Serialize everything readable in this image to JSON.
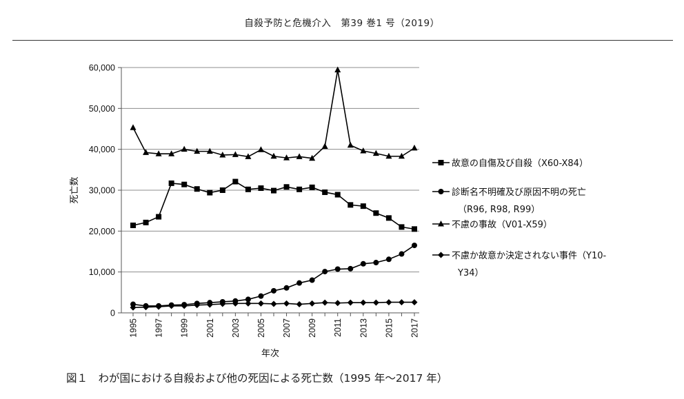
{
  "header": {
    "title": "自殺予防と危機介入　第39 巻1 号（2019）"
  },
  "caption": "図１　わが国における自殺および他の死因による死亡数（1995 年〜2017 年）",
  "chart_data": {
    "type": "line",
    "xlabel": "年次",
    "ylabel": "死亡数",
    "ylim": [
      0,
      60000
    ],
    "yticks": [
      "0",
      "10,000",
      "20,000",
      "30,000",
      "40,000",
      "50,000",
      "60,000"
    ],
    "xticks": [
      "1995",
      "1997",
      "1999",
      "2001",
      "2003",
      "2005",
      "2007",
      "2009",
      "2011",
      "2013",
      "2015",
      "2017"
    ],
    "x": [
      1995,
      1996,
      1997,
      1998,
      1999,
      2000,
      2001,
      2002,
      2003,
      2004,
      2005,
      2006,
      2007,
      2008,
      2009,
      2010,
      2011,
      2012,
      2013,
      2014,
      2015,
      2016,
      2017
    ],
    "grid": "horizontal",
    "legend_position": "right",
    "series": [
      {
        "name": "故意の自傷及び自殺（X60-X84）",
        "legend_lines": [
          "故意の自傷及び自殺（X60-X84）"
        ],
        "marker": "square",
        "values": [
          21400,
          22100,
          23500,
          31700,
          31400,
          30300,
          29400,
          30000,
          32100,
          30200,
          30500,
          29900,
          30800,
          30200,
          30700,
          29500,
          28900,
          26400,
          26100,
          24400,
          23200,
          21000,
          20500
        ]
      },
      {
        "name": "診断名不明確及び原因不明の死亡（R96, R98, R99）",
        "legend_lines": [
          "診断名不明確及び原因不明の死亡",
          "（R96, R98, R99）"
        ],
        "marker": "circle",
        "values": [
          2100,
          1700,
          1700,
          1900,
          2000,
          2300,
          2500,
          2700,
          2900,
          3300,
          4100,
          5400,
          6100,
          7300,
          8000,
          10100,
          10700,
          10800,
          12000,
          12300,
          13100,
          14400,
          16500
        ]
      },
      {
        "name": "不慮の事故（V01-X59）",
        "legend_lines": [
          "不慮の事故（V01-X59）"
        ],
        "marker": "triangle",
        "values": [
          45300,
          39200,
          38900,
          38900,
          40000,
          39500,
          39500,
          38600,
          38700,
          38200,
          39900,
          38300,
          37900,
          38200,
          37800,
          40700,
          59400,
          41000,
          39600,
          39000,
          38300,
          38300,
          40300
        ]
      },
      {
        "name": "不慮か故意か決定されない事件（Y10-Y34）",
        "legend_lines": [
          "不慮か故意か決定されない事件（Y10-",
          "Y34）"
        ],
        "marker": "diamond",
        "values": [
          1300,
          1400,
          1500,
          1700,
          1700,
          1900,
          2000,
          2200,
          2300,
          2300,
          2300,
          2200,
          2300,
          2100,
          2300,
          2500,
          2400,
          2500,
          2500,
          2500,
          2600,
          2600,
          2600
        ]
      }
    ]
  }
}
